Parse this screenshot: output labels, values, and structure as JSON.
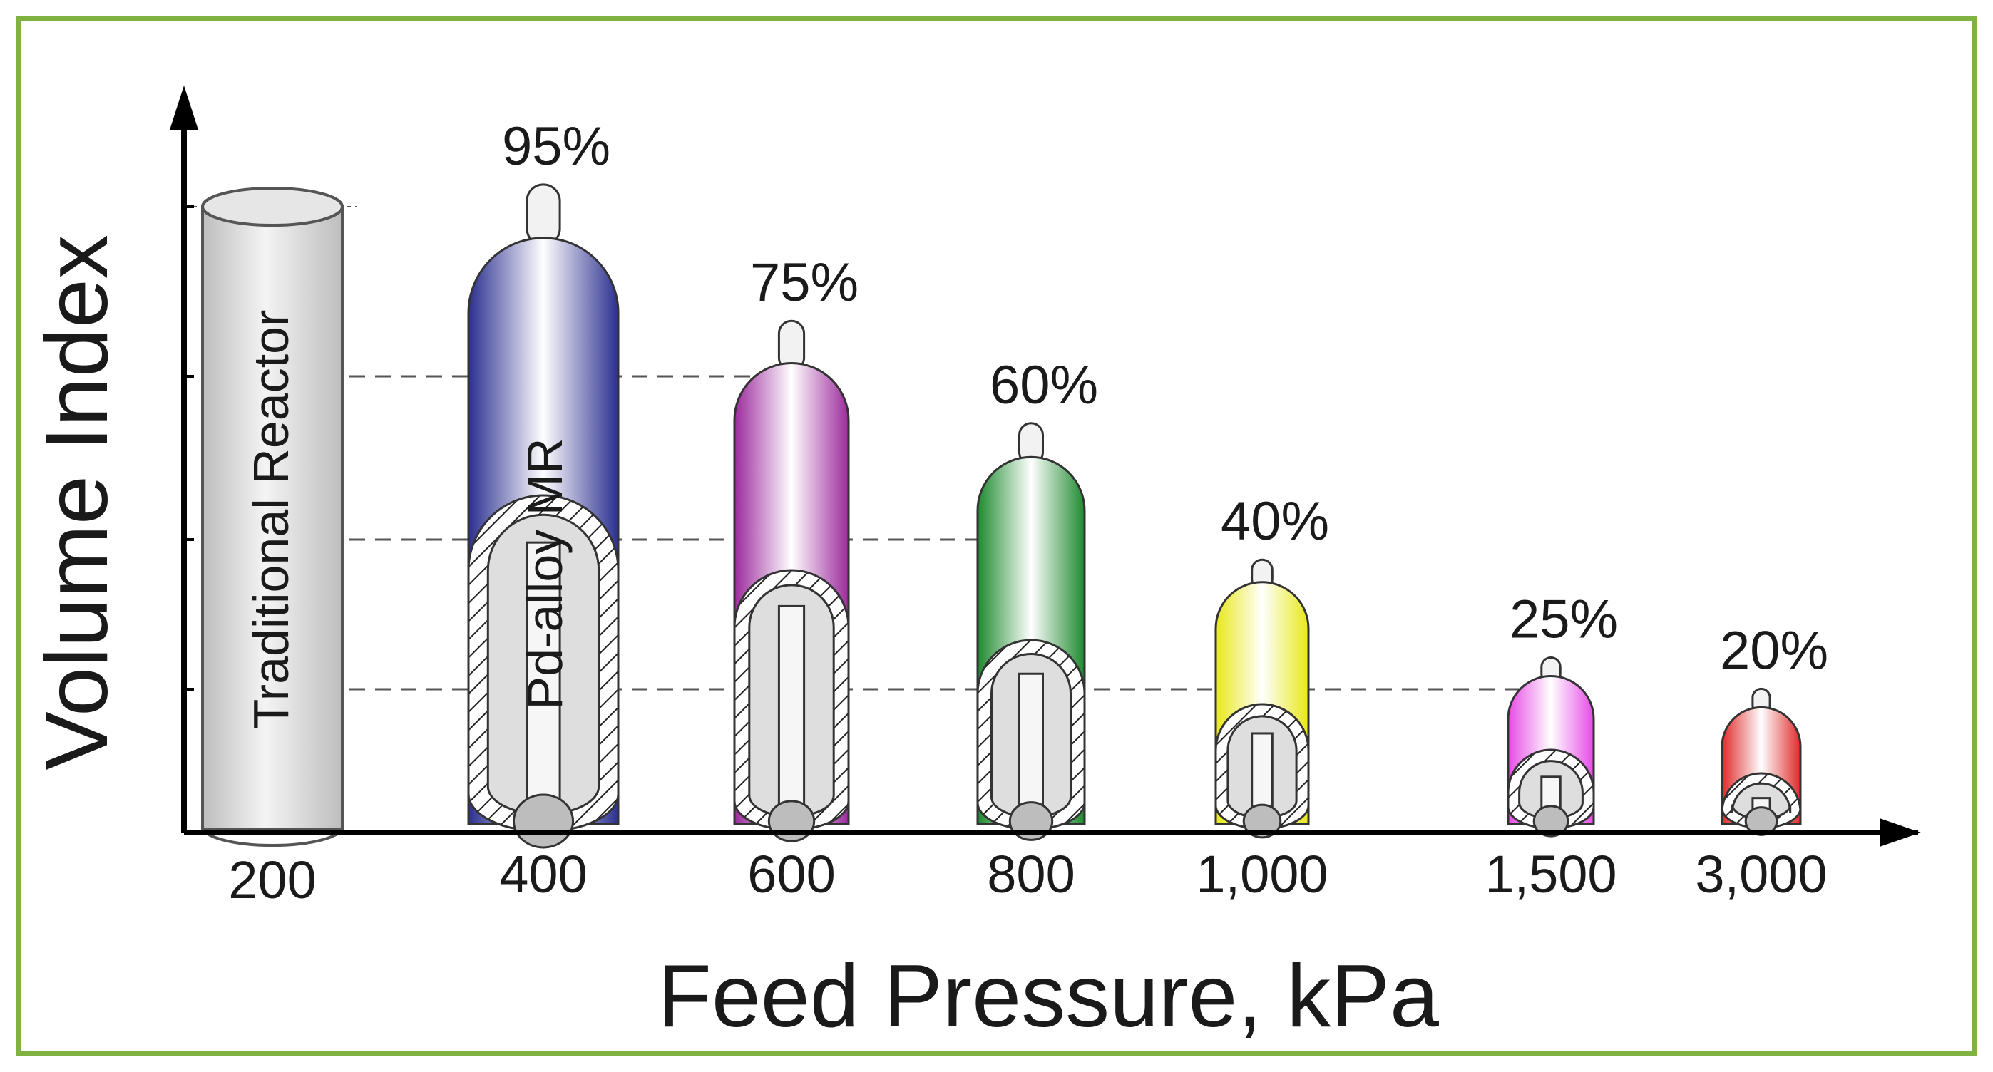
{
  "chart_data": {
    "type": "bar",
    "style": "reactor vessel pictograms",
    "title": "",
    "xlabel": "Feed Pressure, kPa",
    "ylabel": "Volume Index",
    "grid": false,
    "ylim": [
      0,
      110
    ],
    "categories": [
      "200",
      "400",
      "600",
      "800",
      "1,000",
      "1,500",
      "3,000"
    ],
    "values": [
      100,
      95,
      75,
      60,
      40,
      25,
      20
    ],
    "data_labels": [
      "",
      "95%",
      "75%",
      "60%",
      "40%",
      "25%",
      "20%"
    ],
    "annotations": {
      "traditional": "Traditional Reactor",
      "membrane": "Pd-alloy MR"
    },
    "colors": [
      "#cfcfcf",
      "#2b2f8f",
      "#9c2a9c",
      "#1d8a2e",
      "#e8e81a",
      "#e64ae6",
      "#e02a2a"
    ]
  }
}
